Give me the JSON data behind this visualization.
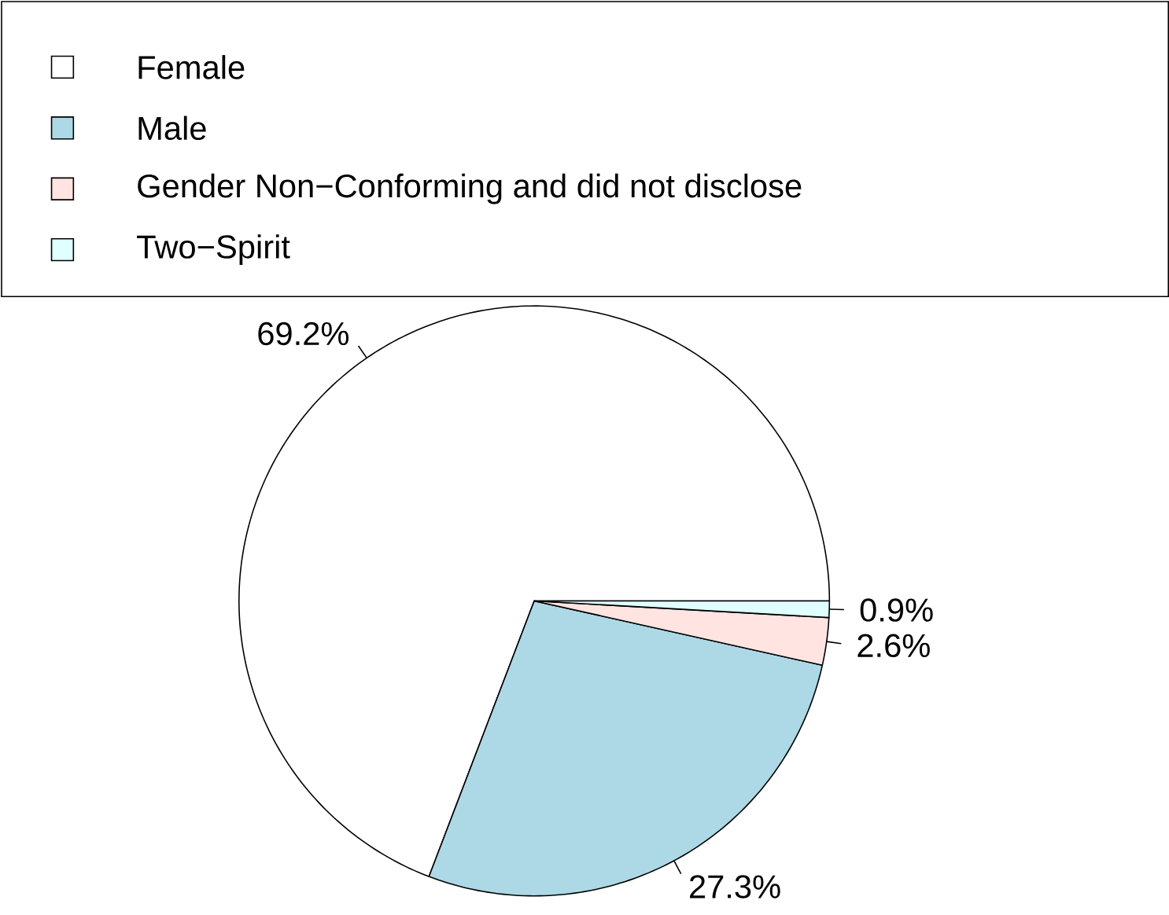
{
  "chart_data": {
    "type": "pie",
    "categories": [
      "Female",
      "Male",
      "Gender Non−Conforming and did not disclose",
      "Two−Spirit"
    ],
    "values": [
      69.2,
      27.3,
      2.6,
      0.9
    ],
    "colors": [
      "#ffffff",
      "#add8e6",
      "#ffe4e1",
      "#e0ffff"
    ],
    "value_labels": [
      "69.2%",
      "27.3%",
      "2.6%",
      "0.9%"
    ],
    "legend": "top"
  }
}
